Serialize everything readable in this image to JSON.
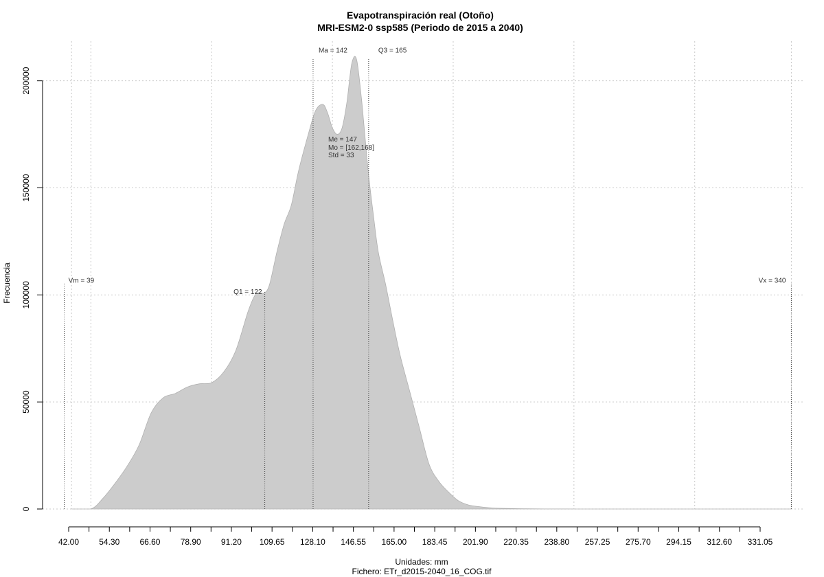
{
  "chart_data": {
    "type": "area",
    "title": "Evapotranspiración real (Otoño)",
    "subtitle": "MRI-ESM2-0 ssp585 (Periodo de 2015 a 2040)",
    "xlabel": "Unidades: mm",
    "ylabel": "Frecuencia",
    "footer": "Fichero: ETr_d2015-2040_16_COG.tif",
    "xlim": [
      42.0,
      331.05
    ],
    "ylim": [
      0,
      210000
    ],
    "grid": true,
    "fill_color": "#cccccc",
    "x_tick_labels": [
      "42.00",
      "54.30",
      "66.60",
      "78.90",
      "91.20",
      "109.65",
      "128.10",
      "146.55",
      "165.00",
      "183.45",
      "201.90",
      "220.35",
      "238.80",
      "257.25",
      "275.70",
      "294.15",
      "312.60",
      "331.05"
    ],
    "y_tick_labels": [
      "0",
      "50000",
      "100000",
      "150000",
      "200000"
    ],
    "y_tick_values": [
      0,
      50000,
      100000,
      150000,
      200000
    ],
    "x_grid_values": [
      42,
      50,
      100,
      150,
      200,
      250,
      300,
      340
    ],
    "x": [
      42,
      50,
      55,
      60,
      65,
      70,
      75,
      80,
      85,
      90,
      95,
      100,
      105,
      110,
      115,
      118,
      120,
      122,
      124,
      127,
      130,
      133,
      136,
      140,
      143,
      146,
      148,
      150,
      152,
      154,
      156,
      158,
      160,
      162,
      163,
      165,
      167,
      169,
      172,
      175,
      178,
      182,
      186,
      190,
      194,
      198,
      202,
      206,
      210,
      215,
      220,
      230,
      240,
      250,
      260,
      280,
      300,
      340
    ],
    "y": [
      0,
      0,
      5000,
      12000,
      20000,
      30000,
      45000,
      52000,
      54000,
      57000,
      58500,
      59000,
      64000,
      74000,
      92000,
      100000,
      101000,
      101000,
      105000,
      120000,
      133000,
      142000,
      158000,
      175000,
      186000,
      189000,
      185000,
      178000,
      175000,
      178000,
      190000,
      208000,
      210000,
      192000,
      180000,
      156000,
      137000,
      120000,
      105000,
      88000,
      72000,
      55000,
      38000,
      21000,
      13000,
      8000,
      4000,
      2000,
      1200,
      600,
      300,
      100,
      30,
      10,
      0,
      0,
      0,
      0
    ],
    "annotations": [
      {
        "label": "Vm = 39",
        "x": 39,
        "line_to": 105000
      },
      {
        "label": "Q1 = 122",
        "x": 122,
        "line_to": 101000
      },
      {
        "label": "Ma = 142",
        "x": 142,
        "line_to": 210000
      },
      {
        "label": "Q3 = 165",
        "x": 165,
        "line_to": 210000
      },
      {
        "label": "Vx = 340",
        "x": 340,
        "line_to": 105000
      }
    ],
    "stats": [
      "Me = 147",
      "Mo = [162,168]",
      "Std = 33"
    ]
  }
}
